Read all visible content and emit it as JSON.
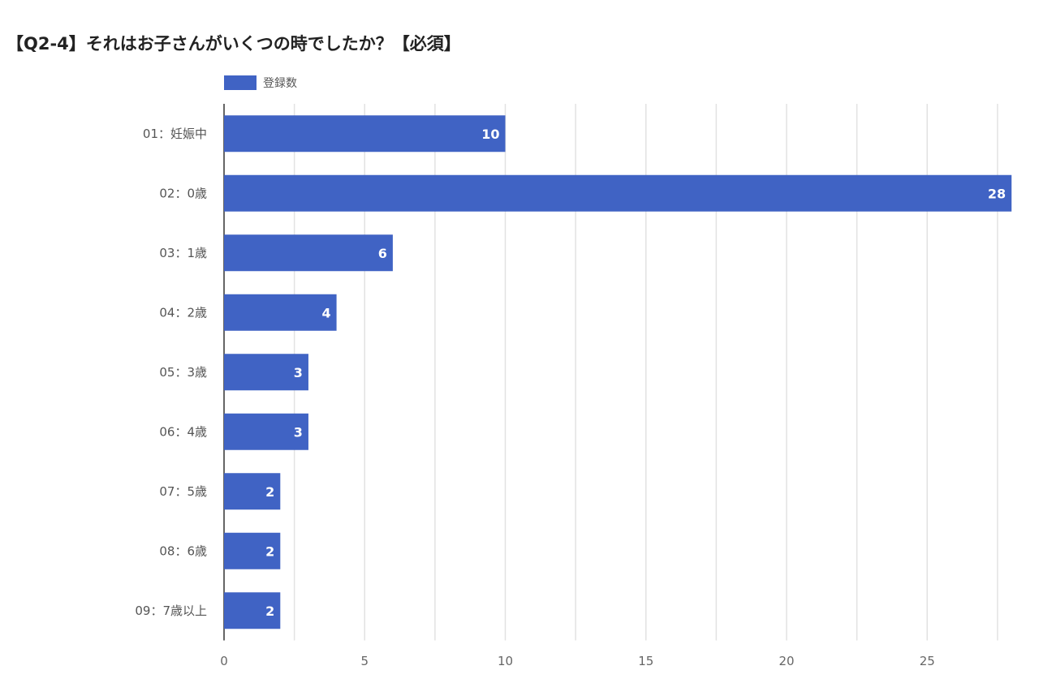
{
  "chart_data": {
    "type": "bar",
    "orientation": "horizontal",
    "title": "【Q2-4】それはお子さんがいくつの時でしたか？【必須】",
    "legend": {
      "entries": [
        "登録数"
      ],
      "placement": "top-left"
    },
    "categories": [
      "01：妊娠中",
      "02：0歳",
      "03：1歳",
      "04：2歳",
      "05：3歳",
      "06：4歳",
      "07：5歳",
      "08：6歳",
      "09：7歳以上"
    ],
    "series": [
      {
        "name": "登録数",
        "values": [
          10,
          28,
          6,
          4,
          3,
          3,
          2,
          2,
          2
        ],
        "color": "#4063c4"
      }
    ],
    "xlim": [
      0,
      28
    ],
    "xticks": [
      0,
      5,
      10,
      15,
      20,
      25
    ],
    "minor_grid_step": 2.5,
    "grid": true,
    "xlabel": "",
    "ylabel": ""
  }
}
